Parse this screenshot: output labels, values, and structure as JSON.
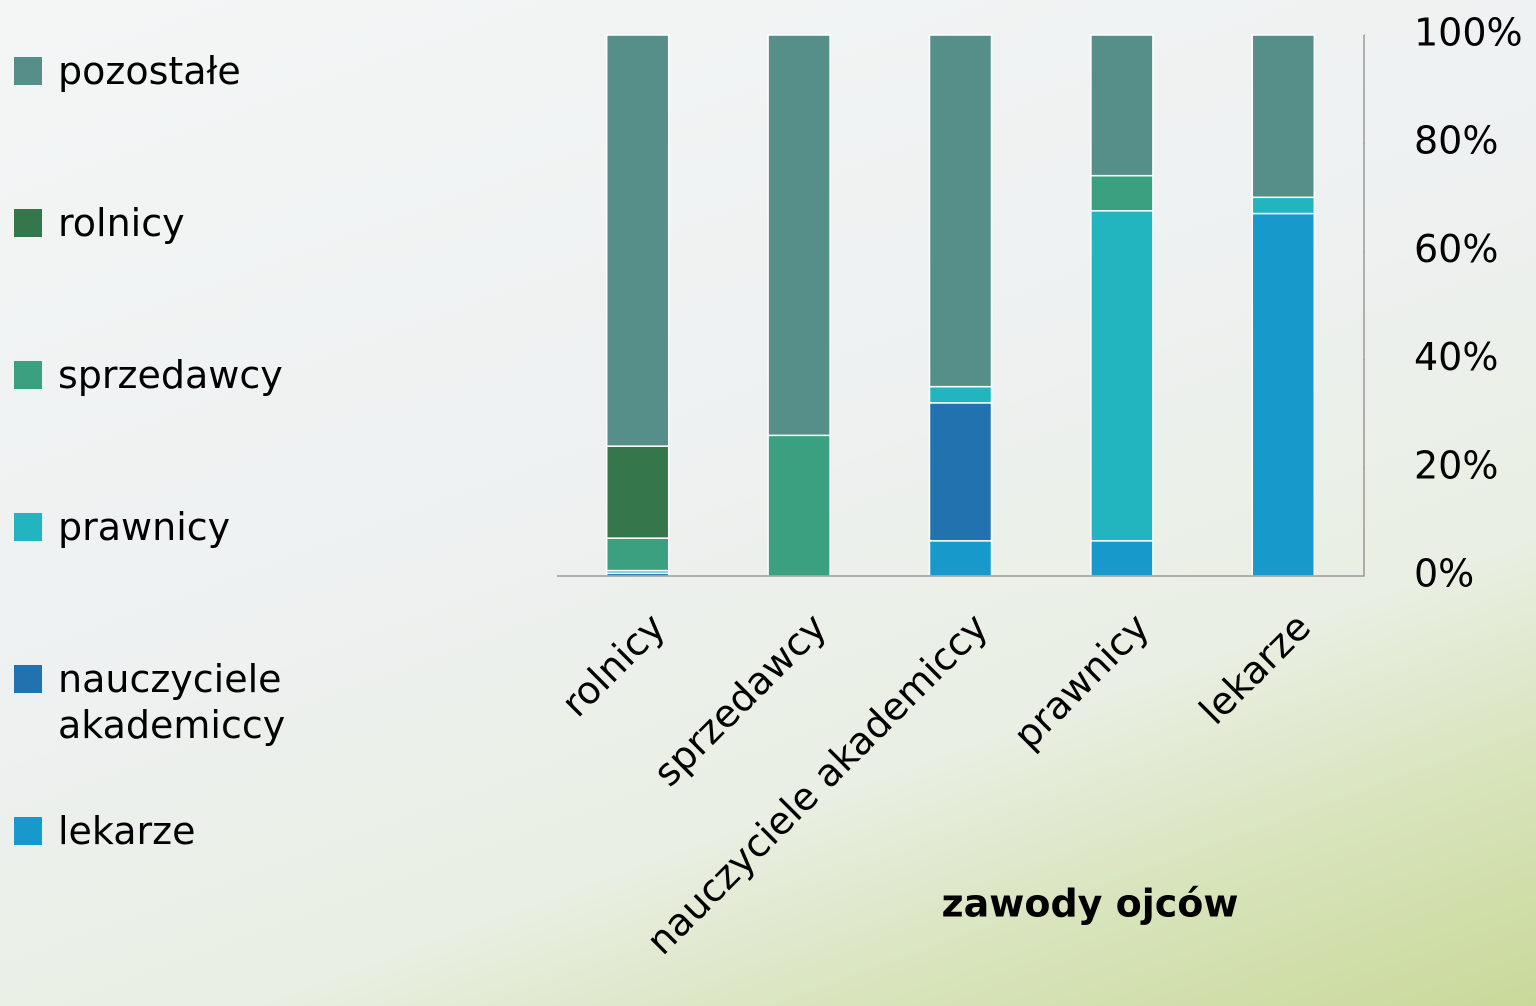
{
  "chart_data": {
    "type": "stacked_bar_100",
    "x_label": "zawody ojców",
    "categories": [
      "rolnicy",
      "sprzedawcy",
      "nauczyciele akademiccy",
      "prawnicy",
      "lekarze"
    ],
    "series": [
      {
        "name": "lekarze",
        "color": "#1899cb",
        "values": [
          0,
          0,
          6.5,
          6.5,
          67
        ]
      },
      {
        "name": "nauczyciele akademiccy",
        "color": "#2372b0",
        "values": [
          0.5,
          0,
          25.5,
          0,
          0
        ]
      },
      {
        "name": "prawnicy",
        "color": "#22b5c0",
        "values": [
          0.5,
          0,
          3,
          61,
          3
        ]
      },
      {
        "name": "sprzedawcy",
        "color": "#3aa07f",
        "values": [
          6,
          26,
          0,
          6.5,
          0
        ]
      },
      {
        "name": "rolnicy",
        "color": "#35764a",
        "values": [
          17,
          0,
          0,
          0,
          0
        ]
      },
      {
        "name": "pozostałe",
        "color": "#568f89",
        "values": [
          76,
          74,
          65,
          26,
          30
        ]
      }
    ],
    "ylim": [
      0,
      100
    ],
    "yticks": [
      {
        "value": 0,
        "label": "0%"
      },
      {
        "value": 20,
        "label": "20%"
      },
      {
        "value": 40,
        "label": "40%"
      },
      {
        "value": 60,
        "label": "60%"
      },
      {
        "value": 80,
        "label": "80%"
      },
      {
        "value": 100,
        "label": "100%"
      }
    ],
    "y_axis_side": "right",
    "legend": "left"
  }
}
